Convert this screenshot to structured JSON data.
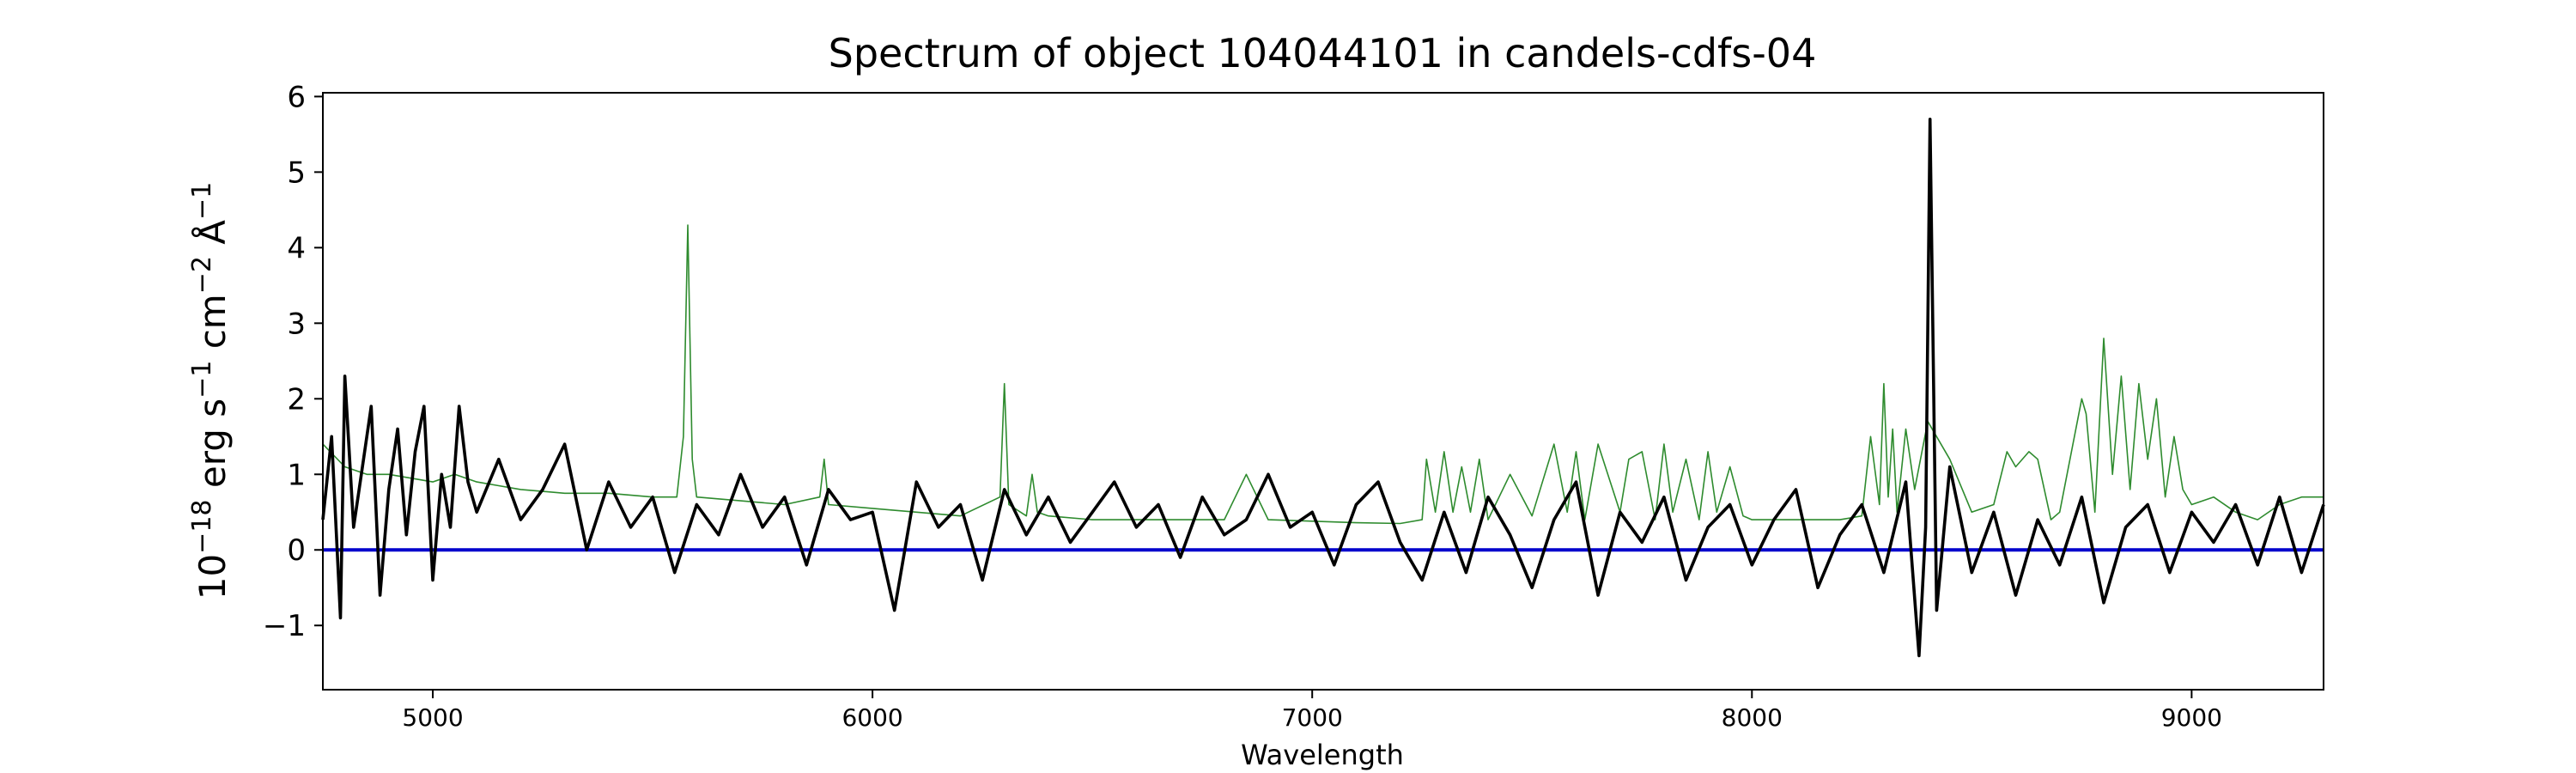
{
  "chart_data": {
    "type": "line",
    "title": "Spectrum of object 104044101 in candels-cdfs-04",
    "xlabel": "Wavelength",
    "ylabel_base": "10",
    "ylabel_exp": "−18",
    "ylabel_units": [
      {
        "text": "erg s",
        "sup": "−1"
      },
      {
        "text": "cm",
        "sup": "−2"
      },
      {
        "text": "Å",
        "sup": "−1"
      }
    ],
    "xlim": [
      4750,
      9300
    ],
    "ylim": [
      -1.85,
      6.05
    ],
    "x_ticks": [
      5000,
      6000,
      7000,
      8000,
      9000
    ],
    "x_tick_labels": [
      "5000",
      "6000",
      "7000",
      "8000",
      "9000"
    ],
    "y_ticks": [
      -1,
      0,
      1,
      2,
      3,
      4,
      5,
      6
    ],
    "y_tick_labels": [
      "−1",
      "0",
      "1",
      "2",
      "3",
      "4",
      "5",
      "6"
    ],
    "grid": false,
    "colors": {
      "flux": "#000000",
      "error": "#2e8b2e",
      "zero": "#0000cc"
    },
    "series": [
      {
        "role": "flux",
        "x": [
          4750,
          4770,
          4790,
          4800,
          4820,
          4840,
          4860,
          4880,
          4900,
          4920,
          4940,
          4960,
          4980,
          5000,
          5020,
          5040,
          5060,
          5080,
          5100,
          5150,
          5200,
          5250,
          5300,
          5350,
          5400,
          5450,
          5500,
          5550,
          5600,
          5650,
          5700,
          5750,
          5800,
          5850,
          5900,
          5950,
          6000,
          6050,
          6100,
          6150,
          6200,
          6250,
          6300,
          6350,
          6400,
          6450,
          6500,
          6550,
          6600,
          6650,
          6700,
          6750,
          6800,
          6850,
          6900,
          6950,
          7000,
          7050,
          7100,
          7150,
          7200,
          7250,
          7300,
          7350,
          7400,
          7450,
          7500,
          7550,
          7600,
          7650,
          7700,
          7750,
          7800,
          7850,
          7900,
          7950,
          8000,
          8050,
          8100,
          8150,
          8200,
          8250,
          8300,
          8350,
          8380,
          8395,
          8405,
          8420,
          8450,
          8500,
          8550,
          8600,
          8650,
          8700,
          8750,
          8800,
          8850,
          8900,
          8950,
          9000,
          9050,
          9100,
          9150,
          9200,
          9250,
          9300
        ],
        "values": [
          0.4,
          1.5,
          -0.9,
          2.3,
          0.3,
          1.1,
          1.9,
          -0.6,
          0.8,
          1.6,
          0.2,
          1.3,
          1.9,
          -0.4,
          1.0,
          0.3,
          1.9,
          0.9,
          0.5,
          1.2,
          0.4,
          0.8,
          1.4,
          0.0,
          0.9,
          0.3,
          0.7,
          -0.3,
          0.6,
          0.2,
          1.0,
          0.3,
          0.7,
          -0.2,
          0.8,
          0.4,
          0.5,
          -0.8,
          0.9,
          0.3,
          0.6,
          -0.4,
          0.8,
          0.2,
          0.7,
          0.1,
          0.5,
          0.9,
          0.3,
          0.6,
          -0.1,
          0.7,
          0.2,
          0.4,
          1.0,
          0.3,
          0.5,
          -0.2,
          0.6,
          0.9,
          0.1,
          -0.4,
          0.5,
          -0.3,
          0.7,
          0.2,
          -0.5,
          0.4,
          0.9,
          -0.6,
          0.5,
          0.1,
          0.7,
          -0.4,
          0.3,
          0.6,
          -0.2,
          0.4,
          0.8,
          -0.5,
          0.2,
          0.6,
          -0.3,
          0.9,
          -1.4,
          0.3,
          5.7,
          -0.8,
          1.1,
          -0.3,
          0.5,
          -0.6,
          0.4,
          -0.2,
          0.7,
          -0.7,
          0.3,
          0.6,
          -0.3,
          0.5,
          0.1,
          0.6,
          -0.2,
          0.7,
          -0.3,
          0.6
        ]
      },
      {
        "role": "error",
        "x": [
          4750,
          4800,
          4850,
          4900,
          4950,
          5000,
          5050,
          5100,
          5150,
          5200,
          5300,
          5400,
          5500,
          5555,
          5570,
          5580,
          5590,
          5600,
          5700,
          5800,
          5880,
          5890,
          5900,
          6000,
          6100,
          6200,
          6290,
          6300,
          6310,
          6350,
          6363,
          6375,
          6400,
          6500,
          6600,
          6700,
          6800,
          6850,
          6900,
          7000,
          7100,
          7200,
          7250,
          7260,
          7280,
          7300,
          7320,
          7340,
          7360,
          7380,
          7400,
          7450,
          7500,
          7550,
          7580,
          7600,
          7620,
          7650,
          7700,
          7720,
          7750,
          7780,
          7800,
          7820,
          7850,
          7880,
          7900,
          7920,
          7950,
          7980,
          8000,
          8100,
          8200,
          8250,
          8270,
          8290,
          8300,
          8310,
          8320,
          8330,
          8350,
          8370,
          8400,
          8450,
          8500,
          8550,
          8580,
          8600,
          8630,
          8650,
          8680,
          8700,
          8750,
          8760,
          8780,
          8800,
          8820,
          8840,
          8860,
          8880,
          8900,
          8920,
          8940,
          8960,
          8980,
          9000,
          9050,
          9100,
          9150,
          9200,
          9250,
          9300
        ],
        "values": [
          1.4,
          1.1,
          1.0,
          1.0,
          0.95,
          0.9,
          1.0,
          0.9,
          0.85,
          0.8,
          0.75,
          0.75,
          0.7,
          0.7,
          1.5,
          4.3,
          1.2,
          0.7,
          0.65,
          0.6,
          0.7,
          1.2,
          0.6,
          0.55,
          0.5,
          0.45,
          0.7,
          2.2,
          0.6,
          0.45,
          1.0,
          0.5,
          0.45,
          0.4,
          0.4,
          0.4,
          0.4,
          1.0,
          0.4,
          0.38,
          0.36,
          0.35,
          0.4,
          1.2,
          0.5,
          1.3,
          0.5,
          1.1,
          0.5,
          1.2,
          0.4,
          1.0,
          0.45,
          1.4,
          0.5,
          1.3,
          0.4,
          1.4,
          0.5,
          1.2,
          1.3,
          0.4,
          1.4,
          0.5,
          1.2,
          0.4,
          1.3,
          0.5,
          1.1,
          0.45,
          0.4,
          0.4,
          0.4,
          0.45,
          1.5,
          0.6,
          2.2,
          0.7,
          1.6,
          0.5,
          1.6,
          0.8,
          1.7,
          1.2,
          0.5,
          0.6,
          1.3,
          1.1,
          1.3,
          1.2,
          0.4,
          0.5,
          2.0,
          1.8,
          0.5,
          2.8,
          1.0,
          2.3,
          0.8,
          2.2,
          1.2,
          2.0,
          0.7,
          1.5,
          0.8,
          0.6,
          0.7,
          0.5,
          0.4,
          0.6,
          0.7,
          0.7
        ]
      },
      {
        "role": "zero",
        "x": [
          4750,
          9300
        ],
        "values": [
          0,
          0
        ]
      }
    ]
  }
}
